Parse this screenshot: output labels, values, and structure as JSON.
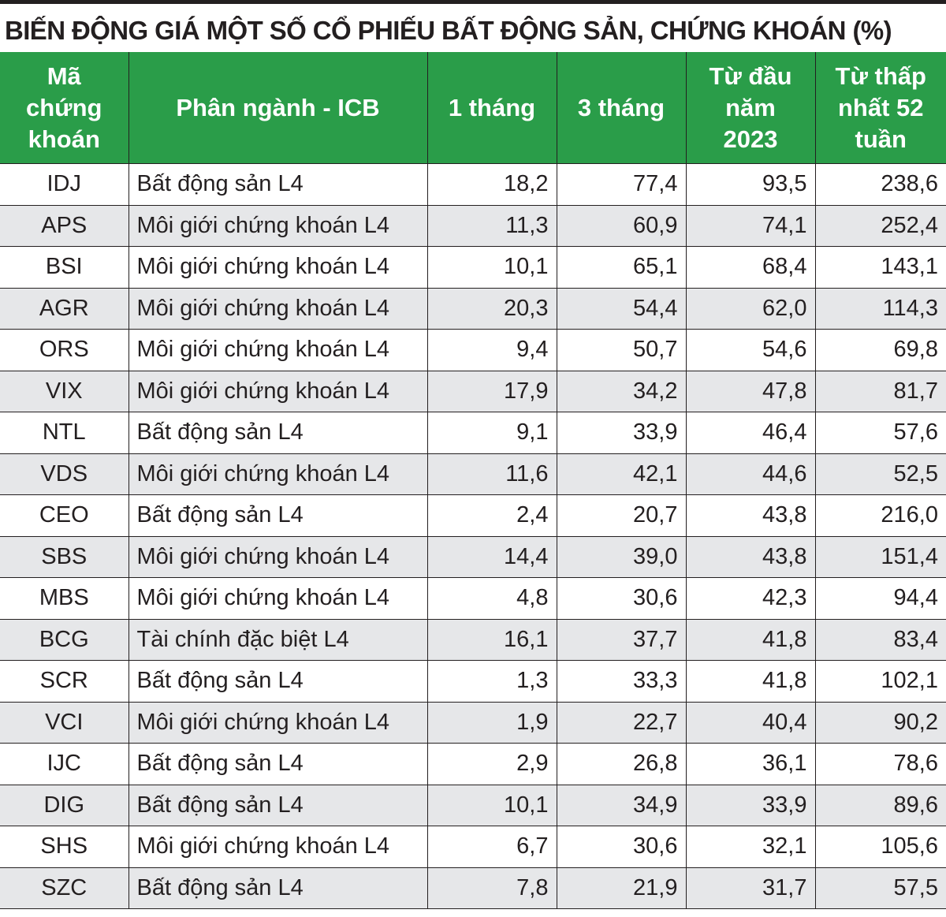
{
  "title": "BIẾN ĐỘNG GIÁ MỘT SỐ CỔ PHIẾU BẤT ĐỘNG SẢN, CHỨNG KHOÁN (%)",
  "colors": {
    "header_bg": "#2a9d49",
    "header_text": "#ffffff",
    "alt_row_bg": "#e6e7e9",
    "border": "#231f20"
  },
  "chart_data": {
    "type": "table",
    "title": "BIẾN ĐỘNG GIÁ MỘT SỐ CỔ PHIẾU BẤT ĐỘNG SẢN, CHỨNG KHOÁN (%)",
    "columns": [
      [
        "Mã",
        "chứng",
        "khoán"
      ],
      [
        "Phân ngành - ICB"
      ],
      [
        "1 tháng"
      ],
      [
        "3 tháng"
      ],
      [
        "Từ đầu",
        "năm",
        "2023"
      ],
      [
        "Từ thấp",
        "nhất 52",
        "tuần"
      ]
    ],
    "rows": [
      [
        "IDJ",
        "Bất động sản L4",
        "18,2",
        "77,4",
        "93,5",
        "238,6"
      ],
      [
        "APS",
        "Môi giới chứng khoán L4",
        "11,3",
        "60,9",
        "74,1",
        "252,4"
      ],
      [
        "BSI",
        "Môi giới chứng khoán L4",
        "10,1",
        "65,1",
        "68,4",
        "143,1"
      ],
      [
        "AGR",
        "Môi giới chứng khoán L4",
        "20,3",
        "54,4",
        "62,0",
        "114,3"
      ],
      [
        "ORS",
        "Môi giới chứng khoán L4",
        "9,4",
        "50,7",
        "54,6",
        "69,8"
      ],
      [
        "VIX",
        "Môi giới chứng khoán L4",
        "17,9",
        "34,2",
        "47,8",
        "81,7"
      ],
      [
        "NTL",
        "Bất động sản L4",
        "9,1",
        "33,9",
        "46,4",
        "57,6"
      ],
      [
        "VDS",
        "Môi giới chứng khoán L4",
        "11,6",
        "42,1",
        "44,6",
        "52,5"
      ],
      [
        "CEO",
        "Bất động sản L4",
        "2,4",
        "20,7",
        "43,8",
        "216,0"
      ],
      [
        "SBS",
        "Môi giới chứng khoán L4",
        "14,4",
        "39,0",
        "43,8",
        "151,4"
      ],
      [
        "MBS",
        "Môi giới chứng khoán L4",
        "4,8",
        "30,6",
        "42,3",
        "94,4"
      ],
      [
        "BCG",
        "Tài chính đặc biệt L4",
        "16,1",
        "37,7",
        "41,8",
        "83,4"
      ],
      [
        "SCR",
        "Bất động sản L4",
        "1,3",
        "33,3",
        "41,8",
        "102,1"
      ],
      [
        "VCI",
        "Môi giới chứng khoán L4",
        "1,9",
        "22,7",
        "40,4",
        "90,2"
      ],
      [
        "IJC",
        "Bất động sản L4",
        "2,9",
        "26,8",
        "36,1",
        "78,6"
      ],
      [
        "DIG",
        "Bất động sản L4",
        "10,1",
        "34,9",
        "33,9",
        "89,6"
      ],
      [
        "SHS",
        "Môi giới chứng khoán L4",
        "6,7",
        "30,6",
        "32,1",
        "105,6"
      ],
      [
        "SZC",
        "Bất động sản L4",
        "7,8",
        "21,9",
        "31,7",
        "57,5"
      ]
    ]
  }
}
